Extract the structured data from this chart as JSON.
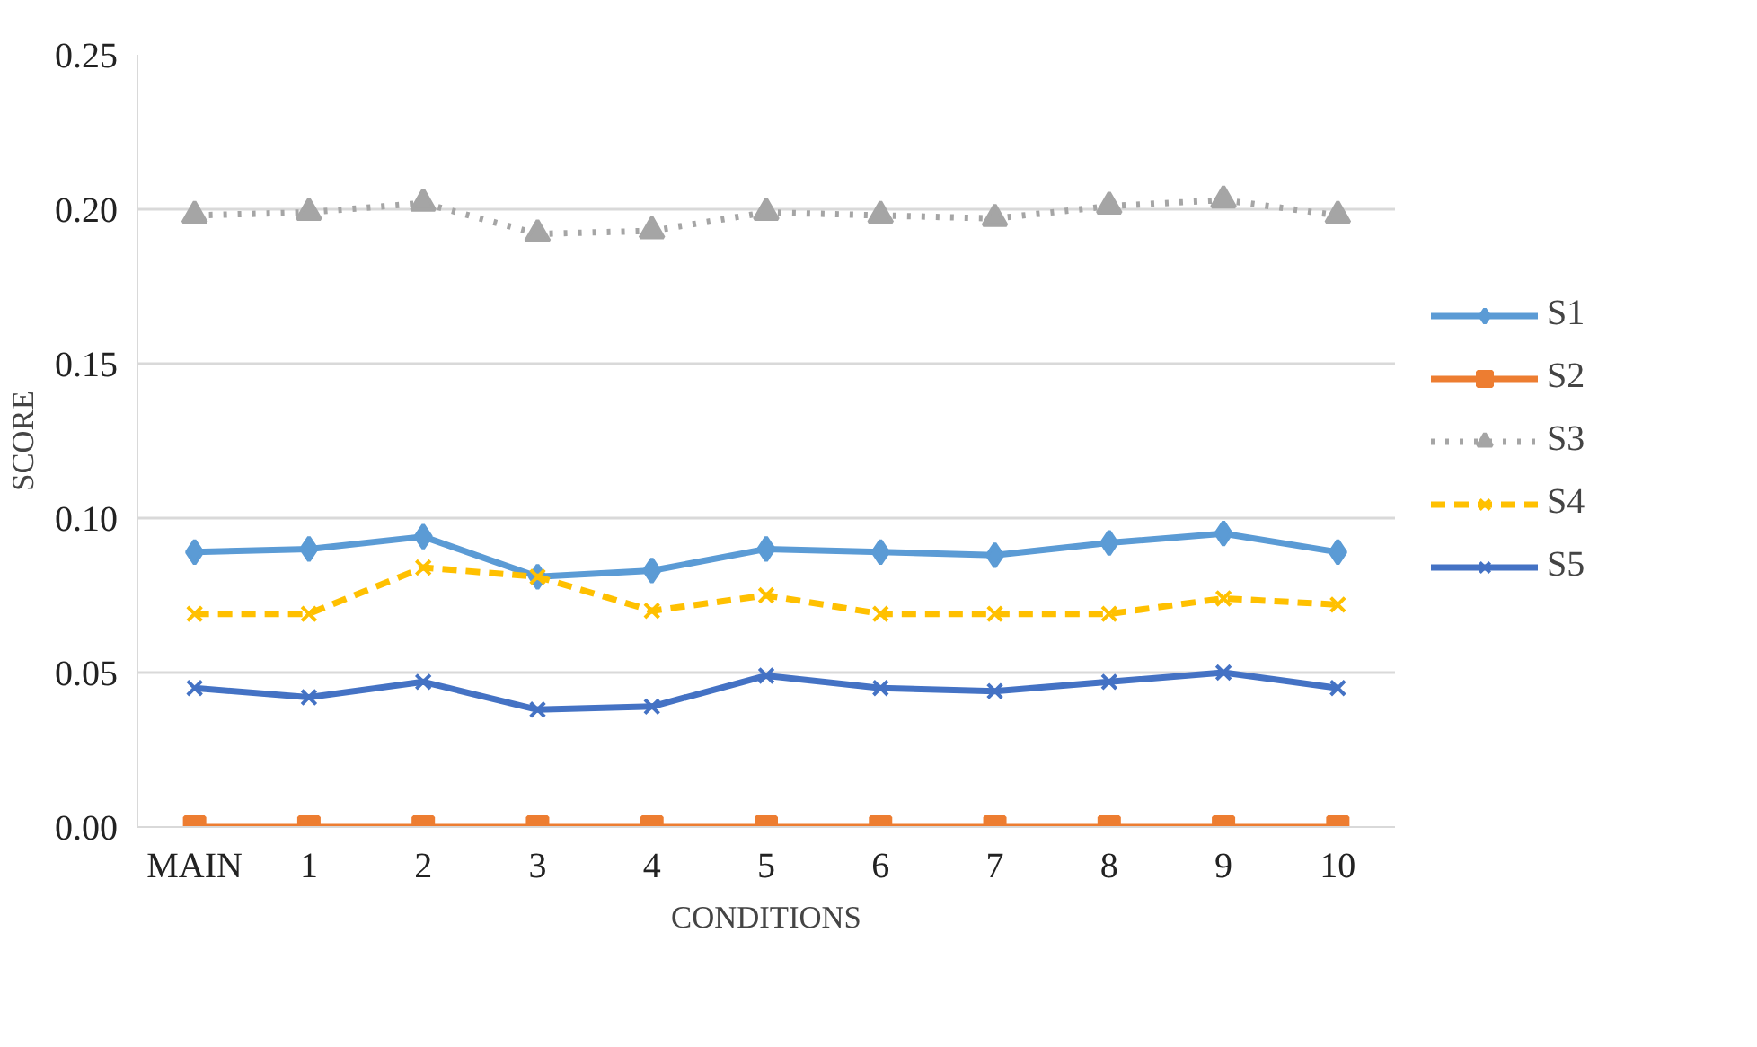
{
  "chart_data": {
    "type": "line",
    "xlabel": "CONDITIONS",
    "ylabel": "SCORE",
    "categories": [
      "MAIN",
      "1",
      "2",
      "3",
      "4",
      "5",
      "6",
      "7",
      "8",
      "9",
      "10"
    ],
    "ylim": [
      0,
      0.25
    ],
    "yticks": [
      {
        "value": 0,
        "label": "0.00"
      },
      {
        "value": 0.05,
        "label": "0.05"
      },
      {
        "value": 0.1,
        "label": "0.10"
      },
      {
        "value": 0.15,
        "label": "0.15"
      },
      {
        "value": 0.2,
        "label": "0.20"
      },
      {
        "value": 0.25,
        "label": "0.25"
      }
    ],
    "grid": "y",
    "legend": "right",
    "series": [
      {
        "name": "S1",
        "color": "#5b9bd5",
        "marker": "diamond",
        "line_style": "solid",
        "values": [
          0.089,
          0.09,
          0.094,
          0.081,
          0.083,
          0.09,
          0.089,
          0.088,
          0.092,
          0.095,
          0.089
        ]
      },
      {
        "name": "S2",
        "color": "#ed7d31",
        "marker": "square",
        "line_style": "solid",
        "values": [
          0,
          0,
          0,
          0,
          0,
          0,
          0,
          0,
          0,
          0,
          0
        ]
      },
      {
        "name": "S3",
        "color": "#a5a5a5",
        "marker": "triangle",
        "line_style": "dotted",
        "values": [
          0.198,
          0.199,
          0.202,
          0.192,
          0.193,
          0.199,
          0.198,
          0.197,
          0.201,
          0.203,
          0.198
        ]
      },
      {
        "name": "S4",
        "color": "#ffc000",
        "marker": "cross",
        "line_style": "dashed",
        "values": [
          0.069,
          0.069,
          0.084,
          0.081,
          0.07,
          0.075,
          0.069,
          0.069,
          0.069,
          0.074,
          0.072
        ]
      },
      {
        "name": "S5",
        "color": "#4472c4",
        "marker": "cross",
        "line_style": "solid",
        "values": [
          0.045,
          0.042,
          0.047,
          0.038,
          0.039,
          0.049,
          0.045,
          0.044,
          0.047,
          0.05,
          0.045
        ]
      }
    ]
  }
}
